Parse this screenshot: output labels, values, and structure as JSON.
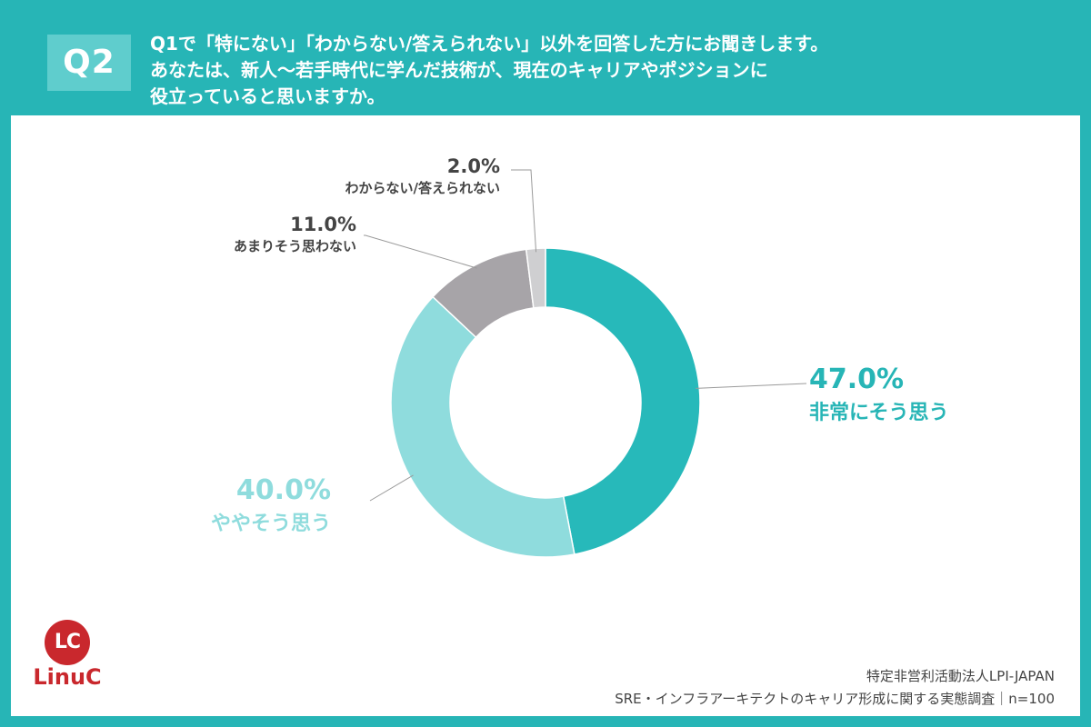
{
  "header": {
    "badge": "Q2",
    "question_lines": [
      "Q1で「特にない」「わからない/答えられない」以外を回答した方にお聞きします。",
      "あなたは、新人〜若手時代に学んだ技術が、現在のキャリアやポジションに",
      "役立っていると思いますか。"
    ]
  },
  "chart_data": {
    "type": "pie",
    "style": "donut",
    "categories": [
      "非常にそう思う",
      "ややそう思う",
      "あまりそう思わない",
      "わからない/答えられない"
    ],
    "values": [
      47.0,
      40.0,
      11.0,
      2.0
    ],
    "value_labels": [
      "47.0%",
      "40.0%",
      "11.0%",
      "2.0%"
    ],
    "colors": [
      "#27b9ba",
      "#8fdcdd",
      "#a7a4a8",
      "#cfcfd1"
    ],
    "label_colors": [
      "#27b5b6",
      "#8fdcdd",
      "#444444",
      "#444444"
    ],
    "start_angle_deg": 0,
    "direction": "clockwise",
    "legend": "none"
  },
  "logo": {
    "mark": "LC",
    "name": "LinuC"
  },
  "footer": {
    "org": "特定非営利活動法人LPI-JAPAN",
    "survey": "SRE・インフラアーキテクトのキャリア形成に関する実態調査｜n=100"
  }
}
